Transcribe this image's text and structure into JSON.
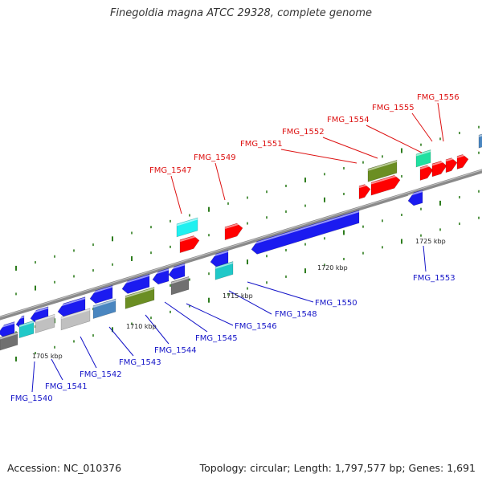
{
  "title": "Finegoldia magna ATCC 29328, complete genome",
  "footer": {
    "accession": "Accession: NC_010376",
    "summary": "Topology: circular; Length: 1,797,577 bp; Genes: 1,691"
  },
  "colors": {
    "backbone": "#8a8a8a",
    "tick": "#2e7d1e",
    "forward_label": "#dd1111",
    "reverse_label": "#1515c8"
  },
  "scale_labels": [
    "1705 kbp",
    "1710 kbp",
    "1715 kbp",
    "1720 kbp",
    "1725 kbp"
  ],
  "labels": [
    {
      "text": "FMG_1540",
      "strand": "reverse"
    },
    {
      "text": "FMG_1541",
      "strand": "reverse"
    },
    {
      "text": "FMG_1542",
      "strand": "reverse"
    },
    {
      "text": "FMG_1543",
      "strand": "reverse"
    },
    {
      "text": "FMG_1544",
      "strand": "reverse"
    },
    {
      "text": "FMG_1545",
      "strand": "reverse"
    },
    {
      "text": "FMG_1546",
      "strand": "reverse"
    },
    {
      "text": "FMG_1547",
      "strand": "forward"
    },
    {
      "text": "FMG_1548",
      "strand": "reverse"
    },
    {
      "text": "FMG_1549",
      "strand": "forward"
    },
    {
      "text": "FMG_1550",
      "strand": "reverse"
    },
    {
      "text": "FMG_1551",
      "strand": "forward"
    },
    {
      "text": "FMG_1552",
      "strand": "forward"
    },
    {
      "text": "FMG_1553",
      "strand": "reverse"
    },
    {
      "text": "FMG_1554",
      "strand": "forward"
    },
    {
      "text": "FMG_1555",
      "strand": "forward"
    },
    {
      "text": "FMG_1556",
      "strand": "forward"
    }
  ]
}
